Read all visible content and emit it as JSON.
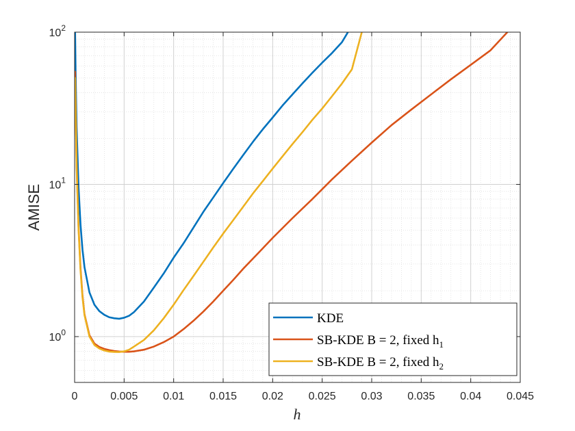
{
  "chart_data": {
    "type": "line",
    "title": "",
    "xlabel": "h",
    "ylabel": "AMISE",
    "xlim": [
      0,
      0.045
    ],
    "ylim": [
      0.5,
      100
    ],
    "yscale": "log",
    "grid": true,
    "minor_grid": true,
    "legend_position": "bottom-right",
    "x_ticks": [
      "0",
      "0.005",
      "0.01",
      "0.015",
      "0.02",
      "0.025",
      "0.03",
      "0.035",
      "0.04",
      "0.045"
    ],
    "y_ticks": [
      {
        "base": "10",
        "exp": "0",
        "value": 1
      },
      {
        "base": "10",
        "exp": "1",
        "value": 10
      },
      {
        "base": "10",
        "exp": "2",
        "value": 100
      }
    ],
    "series": [
      {
        "name": "KDE",
        "legend_label": {
          "text": "KDE",
          "subscript": ""
        },
        "color": "#0072BD",
        "x": [
          5e-05,
          0.0001,
          0.0002,
          0.0004,
          0.0006,
          0.0008,
          0.001,
          0.0015,
          0.002,
          0.0025,
          0.003,
          0.0035,
          0.004,
          0.0045,
          0.005,
          0.0055,
          0.006,
          0.007,
          0.008,
          0.009,
          0.01,
          0.011,
          0.012,
          0.013,
          0.014,
          0.015,
          0.016,
          0.017,
          0.018,
          0.019,
          0.02,
          0.021,
          0.022,
          0.023,
          0.024,
          0.025,
          0.026,
          0.027,
          0.0276
        ],
        "y": [
          100,
          55,
          24,
          9.5,
          5.4,
          3.7,
          2.85,
          1.95,
          1.62,
          1.47,
          1.39,
          1.34,
          1.32,
          1.31,
          1.33,
          1.37,
          1.45,
          1.7,
          2.1,
          2.6,
          3.3,
          4.1,
          5.2,
          6.6,
          8.2,
          10.2,
          12.6,
          15.5,
          19,
          23,
          27.5,
          33,
          39,
          46,
          54,
          63,
          73,
          86,
          100
        ]
      },
      {
        "name": "SB-KDE B = 2, fixed h1",
        "legend_label": {
          "text": "SB-KDE B = 2, fixed h",
          "subscript": "1"
        },
        "color": "#D95319",
        "x": [
          5e-05,
          0.0002,
          0.0004,
          0.0006,
          0.0008,
          0.001,
          0.0015,
          0.002,
          0.0025,
          0.003,
          0.0035,
          0.004,
          0.0045,
          0.005,
          0.0055,
          0.006,
          0.007,
          0.008,
          0.009,
          0.01,
          0.011,
          0.012,
          0.013,
          0.014,
          0.015,
          0.016,
          0.017,
          0.018,
          0.019,
          0.02,
          0.022,
          0.024,
          0.026,
          0.028,
          0.03,
          0.032,
          0.034,
          0.036,
          0.038,
          0.04,
          0.042,
          0.0437
        ],
        "y": [
          55,
          14,
          5.2,
          2.8,
          1.85,
          1.4,
          1.02,
          0.9,
          0.855,
          0.83,
          0.815,
          0.805,
          0.798,
          0.795,
          0.795,
          0.8,
          0.82,
          0.86,
          0.92,
          1.0,
          1.12,
          1.27,
          1.46,
          1.7,
          2.0,
          2.35,
          2.78,
          3.25,
          3.8,
          4.45,
          6.0,
          8.0,
          10.8,
          14.3,
          18.8,
          24.5,
          31,
          39,
          49,
          61,
          76,
          100
        ]
      },
      {
        "name": "SB-KDE B = 2, fixed h2",
        "legend_label": {
          "text": "SB-KDE B = 2, fixed h",
          "subscript": "2"
        },
        "color": "#EDB120",
        "x": [
          5e-05,
          0.0002,
          0.0004,
          0.0006,
          0.0008,
          0.001,
          0.0015,
          0.002,
          0.0025,
          0.003,
          0.0035,
          0.004,
          0.0045,
          0.005,
          0.0055,
          0.006,
          0.007,
          0.008,
          0.009,
          0.01,
          0.011,
          0.012,
          0.013,
          0.014,
          0.015,
          0.016,
          0.017,
          0.018,
          0.019,
          0.02,
          0.021,
          0.022,
          0.023,
          0.024,
          0.025,
          0.026,
          0.027,
          0.028,
          0.029
        ],
        "y": [
          50,
          13,
          5.0,
          2.7,
          1.8,
          1.38,
          1.0,
          0.88,
          0.835,
          0.81,
          0.797,
          0.793,
          0.792,
          0.8,
          0.82,
          0.86,
          0.95,
          1.1,
          1.32,
          1.62,
          2.02,
          2.5,
          3.1,
          3.85,
          4.75,
          5.8,
          7.1,
          8.7,
          10.5,
          12.7,
          15.3,
          18.4,
          22,
          26.5,
          31.5,
          38,
          46,
          57,
          100
        ]
      }
    ]
  }
}
